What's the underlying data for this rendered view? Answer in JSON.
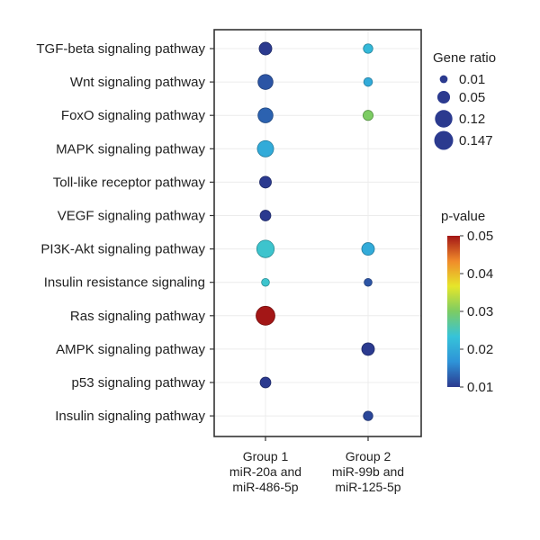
{
  "chart_data": {
    "type": "scatter",
    "subtype": "dot-plot",
    "pathways": [
      "TGF-beta signaling pathway",
      "Wnt signaling pathway",
      "FoxO signaling pathway",
      "MAPK signaling pathway",
      "Toll-like receptor pathway",
      "VEGF signaling pathway",
      "PI3K-Akt signaling pathway",
      "Insulin resistance signaling",
      "Ras signaling pathway",
      "AMPK signaling pathway",
      "p53 signaling pathway",
      "Insulin signaling pathway"
    ],
    "groups": [
      {
        "lines": [
          "Group 1",
          "miR-20a and",
          "miR-486-5p"
        ]
      },
      {
        "lines": [
          "Group 2",
          "miR-99b and",
          "miR-125-5p"
        ]
      }
    ],
    "points": [
      {
        "pathway": "TGF-beta signaling pathway",
        "group": 0,
        "gene_ratio": 0.05,
        "p_value": 0.01
      },
      {
        "pathway": "Wnt signaling pathway",
        "group": 0,
        "gene_ratio": 0.08,
        "p_value": 0.012
      },
      {
        "pathway": "FoxO signaling pathway",
        "group": 0,
        "gene_ratio": 0.08,
        "p_value": 0.013
      },
      {
        "pathway": "MAPK signaling pathway",
        "group": 0,
        "gene_ratio": 0.1,
        "p_value": 0.02
      },
      {
        "pathway": "Toll-like receptor pathway",
        "group": 0,
        "gene_ratio": 0.04,
        "p_value": 0.01
      },
      {
        "pathway": "VEGF signaling pathway",
        "group": 0,
        "gene_ratio": 0.03,
        "p_value": 0.01
      },
      {
        "pathway": "PI3K-Akt signaling pathway",
        "group": 0,
        "gene_ratio": 0.12,
        "p_value": 0.024
      },
      {
        "pathway": "Insulin resistance signaling",
        "group": 0,
        "gene_ratio": 0.01,
        "p_value": 0.024
      },
      {
        "pathway": "Ras signaling pathway",
        "group": 0,
        "gene_ratio": 0.147,
        "p_value": 0.05
      },
      {
        "pathway": "p53 signaling pathway",
        "group": 0,
        "gene_ratio": 0.03,
        "p_value": 0.01
      },
      {
        "pathway": "TGF-beta signaling pathway",
        "group": 1,
        "gene_ratio": 0.02,
        "p_value": 0.022
      },
      {
        "pathway": "Wnt signaling pathway",
        "group": 1,
        "gene_ratio": 0.015,
        "p_value": 0.02
      },
      {
        "pathway": "FoxO signaling pathway",
        "group": 1,
        "gene_ratio": 0.025,
        "p_value": 0.03
      },
      {
        "pathway": "PI3K-Akt signaling pathway",
        "group": 1,
        "gene_ratio": 0.05,
        "p_value": 0.02
      },
      {
        "pathway": "Insulin resistance signaling",
        "group": 1,
        "gene_ratio": 0.01,
        "p_value": 0.012
      },
      {
        "pathway": "AMPK signaling pathway",
        "group": 1,
        "gene_ratio": 0.05,
        "p_value": 0.01
      },
      {
        "pathway": "Insulin signaling pathway",
        "group": 1,
        "gene_ratio": 0.02,
        "p_value": 0.011
      }
    ],
    "size_legend": {
      "title": "Gene ratio",
      "entries": [
        {
          "value": 0.01,
          "label": "0.01"
        },
        {
          "value": 0.05,
          "label": "0.05"
        },
        {
          "value": 0.12,
          "label": "0.12"
        },
        {
          "value": 0.147,
          "label": "0.147"
        }
      ]
    },
    "color_legend": {
      "title": "p-value",
      "range": [
        0.01,
        0.05
      ],
      "ticks": [
        {
          "value": 0.05,
          "label": "0.05"
        },
        {
          "value": 0.04,
          "label": "0.04"
        },
        {
          "value": 0.03,
          "label": "0.03"
        },
        {
          "value": 0.02,
          "label": "0.02"
        },
        {
          "value": 0.01,
          "label": "0.01"
        }
      ],
      "colors": [
        "#2b3a8f",
        "#2e93d8",
        "#36c3d9",
        "#7ccc63",
        "#e6e62a",
        "#f08a2a",
        "#a31616"
      ]
    },
    "grid": true,
    "xlabel": "",
    "ylabel": ""
  }
}
